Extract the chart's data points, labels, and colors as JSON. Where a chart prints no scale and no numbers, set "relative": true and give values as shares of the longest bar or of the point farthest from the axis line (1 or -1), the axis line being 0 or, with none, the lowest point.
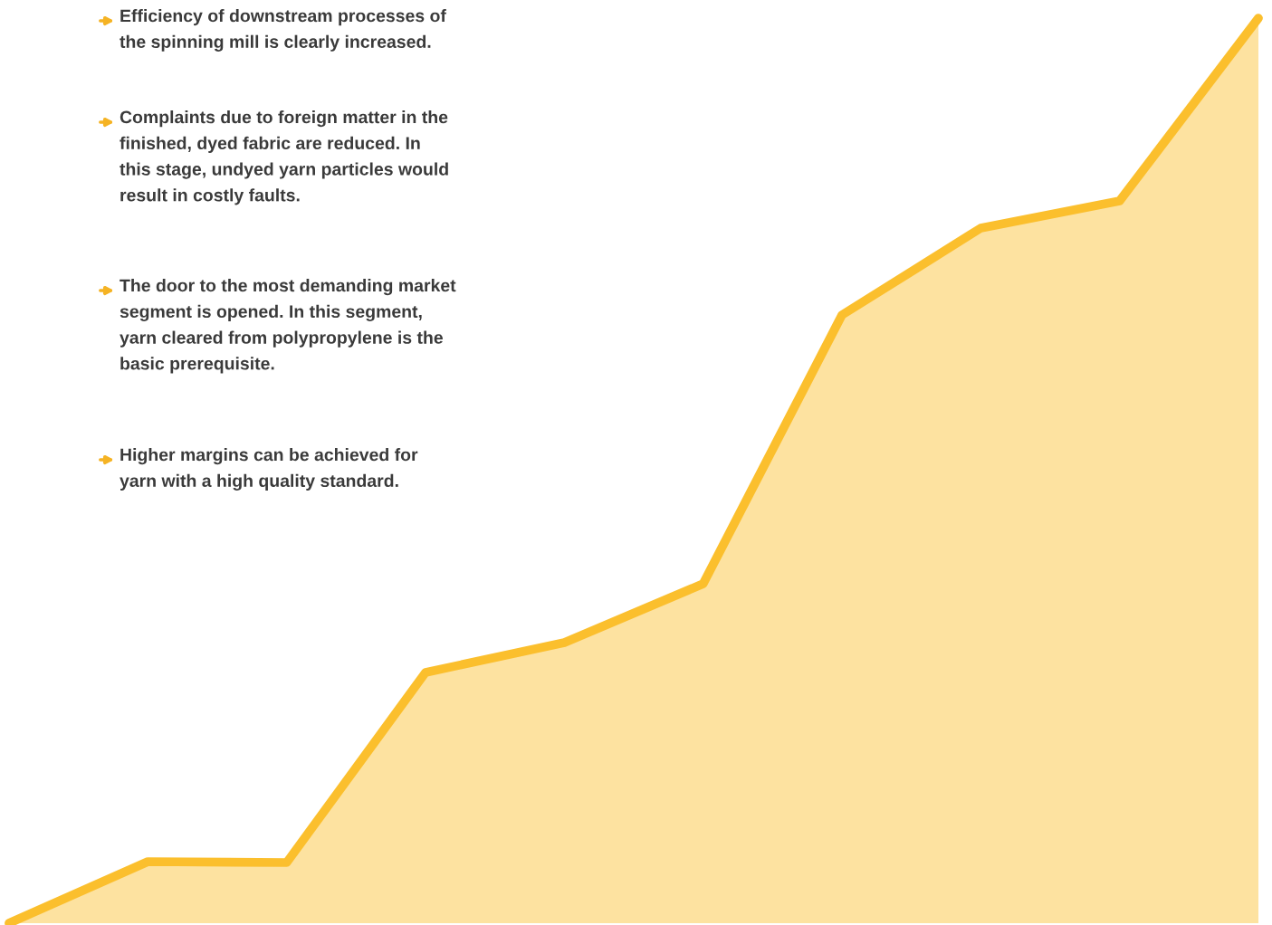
{
  "chart_data": {
    "type": "area",
    "relative": true,
    "categories": [
      null,
      null,
      null,
      null,
      null,
      null,
      null,
      null,
      null,
      null
    ],
    "series": [
      {
        "color": "#fbbf2d",
        "values": [
          0,
          0.068,
          0.067,
          0.277,
          0.31,
          0.375,
          0.672,
          0.768,
          0.798,
          1.0
        ]
      }
    ],
    "annotations": [
      "Efficiency of downstream processes of\nthe spinning mill is clearly increased.",
      "Complaints due to foreign matter in the\nfinished, dyed fabric are reduced. In\nthis stage, undyed yarn particles would\nresult in costly faults.",
      "The door to the most demanding market\nsegment is opened. In this segment,\nyarn cleared from polypropylene is the\nbasic prerequisite.",
      "Higher margins can be achieved for\nyarn with a high quality standard."
    ],
    "legend": false
  }
}
